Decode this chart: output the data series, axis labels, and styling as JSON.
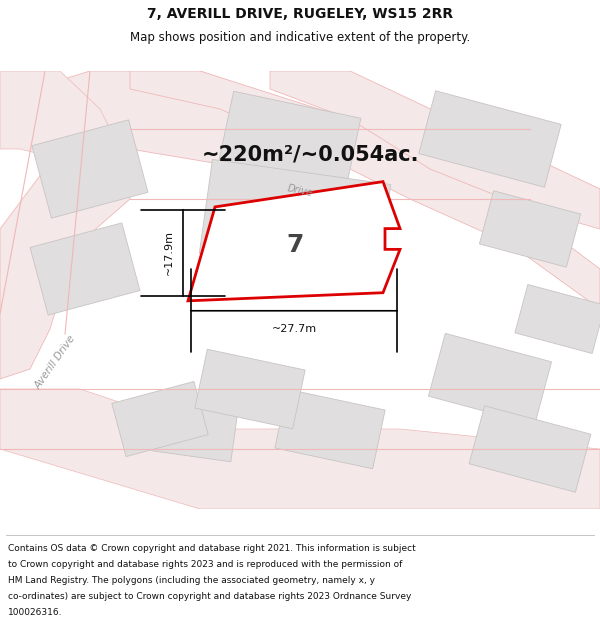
{
  "title": "7, AVERILL DRIVE, RUGELEY, WS15 2RR",
  "subtitle": "Map shows position and indicative extent of the property.",
  "area_label": "~220m²/~0.054ac.",
  "number_label": "7",
  "width_label": "~27.7m",
  "height_label": "~17.9m",
  "footer_lines": [
    "Contains OS data © Crown copyright and database right 2021. This information is subject",
    "to Crown copyright and database rights 2023 and is reproduced with the permission of",
    "HM Land Registry. The polygons (including the associated geometry, namely x, y",
    "co-ordinates) are subject to Crown copyright and database rights 2023 Ordnance Survey",
    "100026316."
  ],
  "map_bg": "#f7f5f5",
  "road_color": "#f0b8b8",
  "road_fill": "#f5e8e8",
  "building_fill": "#e0dede",
  "building_edge": "#c8c4c4",
  "plot_fill": "#ffffff",
  "plot_edge": "#dd0000",
  "dim_color": "#111111",
  "road_label_color": "#999999",
  "title_color": "#111111",
  "footer_bg": "#ffffff",
  "figsize": [
    6.0,
    6.25
  ],
  "dpi": 100,
  "title_fontsize": 10,
  "subtitle_fontsize": 8.5,
  "area_fontsize": 15,
  "num_fontsize": 18,
  "dim_fontsize": 8,
  "footer_fontsize": 6.5
}
